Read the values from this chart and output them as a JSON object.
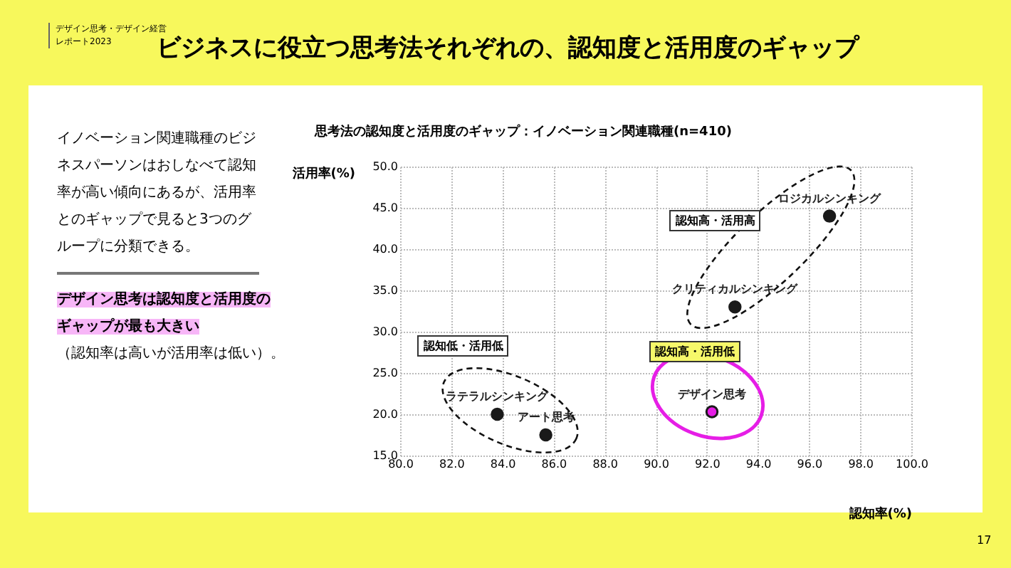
{
  "chart_data": {
    "type": "scatter",
    "title": "ビジネスに役立つ思考法それぞれの、認知度と活用度のギャップ",
    "subtitle": "思考法の認知度と活用度のギャップ：イノベーション関連職種(n=410)",
    "xlabel": "認知率(%)",
    "ylabel": "活用率(%)",
    "x": [
      96.8,
      93.1,
      92.2,
      83.8,
      85.7
    ],
    "series": [
      {
        "color": "#1a1a1a",
        "values": [
          44.0,
          33.0,
          20.3,
          20.0,
          17.5
        ],
        "colors": [
          "#1a1a1a",
          "#1a1a1a",
          "#e61ee6",
          "#1a1a1a",
          "#1a1a1a"
        ]
      }
    ],
    "xlim": [
      80,
      100
    ],
    "xticks": [
      {
        "value": 80,
        "label": "80.0"
      },
      {
        "value": 82,
        "label": "82.0"
      },
      {
        "value": 84,
        "label": "84.0"
      },
      {
        "value": 86,
        "label": "86.0"
      },
      {
        "value": 88,
        "label": "88.0"
      },
      {
        "value": 90,
        "label": "90.0"
      },
      {
        "value": 92,
        "label": "92.0"
      },
      {
        "value": 94,
        "label": "94.0"
      },
      {
        "value": 96,
        "label": "96.0"
      },
      {
        "value": 98,
        "label": "98.0"
      },
      {
        "value": 100,
        "label": "100.0"
      }
    ],
    "ylim": [
      15,
      50
    ],
    "yticks": [
      {
        "value": 15,
        "label": "15.0"
      },
      {
        "value": 20,
        "label": "20.0"
      },
      {
        "value": 25,
        "label": "25.0"
      },
      {
        "value": 30,
        "label": "30.0"
      },
      {
        "value": 35,
        "label": "35.0"
      },
      {
        "value": 40,
        "label": "40.0"
      },
      {
        "value": 45,
        "label": "45.0"
      },
      {
        "value": 50,
        "label": "50.0"
      }
    ],
    "grid": true,
    "marker": "circle",
    "annotations": [
      "デザイン思考・デザイン経営レポート2023",
      "イノベーション関連職種のビジネスパーソンはおしなべて認知率が高い傾向にあるが、活用率とのギャップで見ると3つのグループに分類できる。",
      "デザイン思考は認知度と活用度のギャップが最も大きい",
      "（認知率は高いが活用率は低い）。",
      "17",
      "認知高・活用高",
      "認知低・活用低",
      "認知高・活用低",
      {
        "text": "ロジカルシンキング",
        "x": 96.8,
        "y": 44.0
      },
      {
        "text": "クリティカルシンキング",
        "x": 93.1,
        "y": 33.0
      },
      {
        "text": "デザイン思考",
        "x": 92.2,
        "y": 20.3
      },
      {
        "text": "ラテラルシンキング",
        "x": 83.8,
        "y": 20.0
      },
      {
        "text": "アート思考",
        "x": 85.7,
        "y": 17.5
      }
    ]
  }
}
